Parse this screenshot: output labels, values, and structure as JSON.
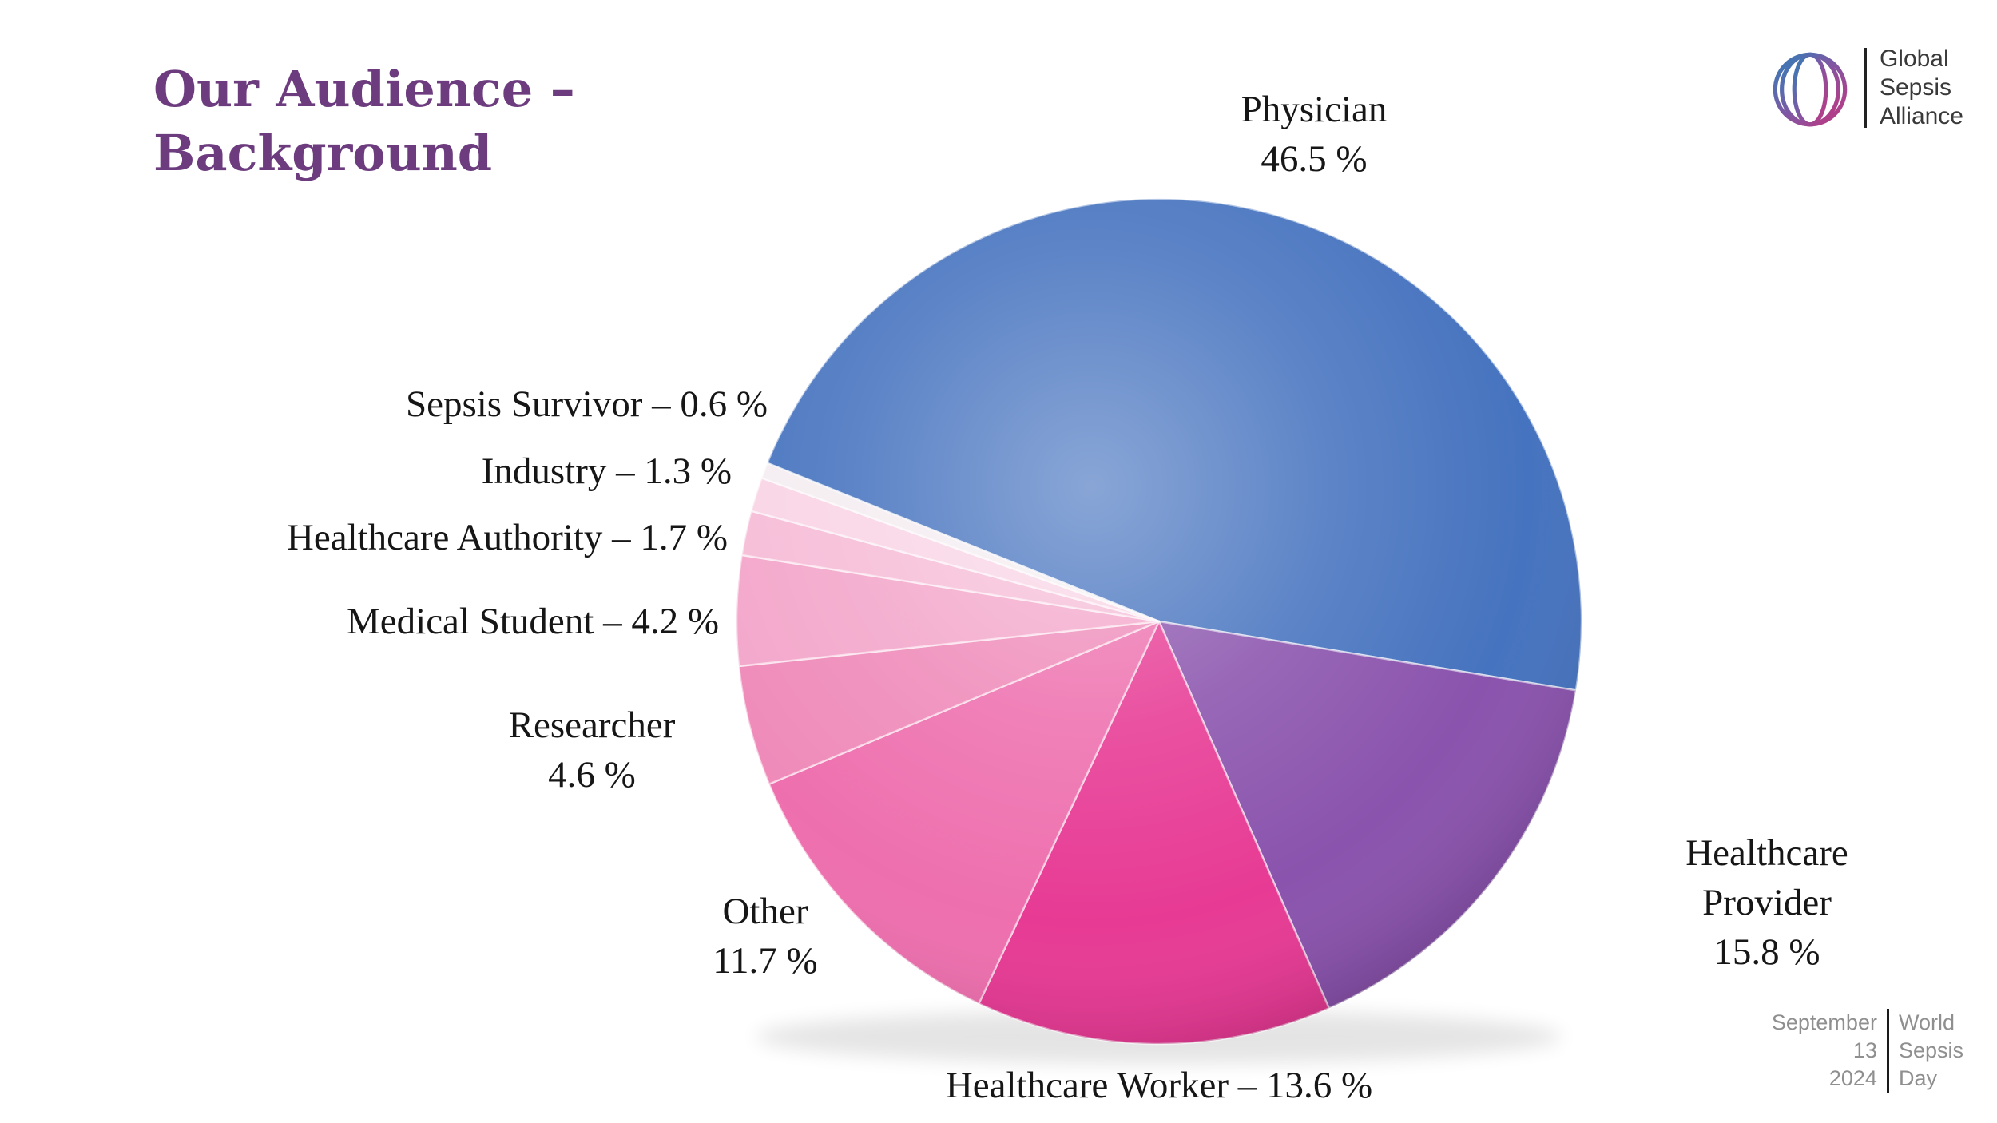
{
  "title": {
    "line1": "Our Audience –",
    "line2": "Background",
    "color": "#6d3c7f"
  },
  "logo": {
    "org_lines": [
      "Global",
      "Sepsis",
      "Alliance"
    ]
  },
  "footer": {
    "date_lines": [
      "September",
      "13",
      "2024"
    ],
    "event_lines": [
      "World",
      "Sepsis",
      "Day"
    ]
  },
  "chart_data": {
    "type": "pie",
    "title": "Our Audience – Background",
    "start_angle_deg": -68,
    "direction": "clockwise",
    "total": 100,
    "legend": "none",
    "slices": [
      {
        "id": "physician",
        "label": "Physician",
        "value": 46.5,
        "color": "#4673bf",
        "label_lines": [
          "Physician",
          "46.5 %"
        ]
      },
      {
        "id": "healthcare-provider",
        "label": "Healthcare Provider",
        "value": 15.8,
        "color": "#8a53ad",
        "label_lines": [
          "Healthcare Provider",
          "15.8 %"
        ]
      },
      {
        "id": "healthcare-worker",
        "label": "Healthcare Worker",
        "value": 13.6,
        "color": "#e73a94",
        "label_lines": [
          "Healthcare Worker – 13.6 %"
        ]
      },
      {
        "id": "other",
        "label": "Other",
        "value": 11.7,
        "color": "#ee6fae",
        "label_lines": [
          "Other",
          "11.7 %"
        ]
      },
      {
        "id": "researcher",
        "label": "Researcher",
        "value": 4.6,
        "color": "#ef8ab9",
        "label_lines": [
          "Researcher",
          "4.6 %"
        ]
      },
      {
        "id": "medical-student",
        "label": "Medical Student",
        "value": 4.2,
        "color": "#f3a6ca",
        "label_lines": [
          "Medical Student – 4.2 %"
        ]
      },
      {
        "id": "healthcare-authority",
        "label": "Healthcare Authority",
        "value": 1.7,
        "color": "#f6bcd7",
        "label_lines": [
          "Healthcare Authority – 1.7 %"
        ]
      },
      {
        "id": "industry",
        "label": "Industry",
        "value": 1.3,
        "color": "#f9d4e5",
        "label_lines": [
          "Industry – 1.3 %"
        ]
      },
      {
        "id": "sepsis-survivor",
        "label": "Sepsis Survivor",
        "value": 0.6,
        "color": "#f4edf1",
        "label_lines": [
          "Sepsis Survivor – 0.6 %"
        ]
      }
    ]
  }
}
